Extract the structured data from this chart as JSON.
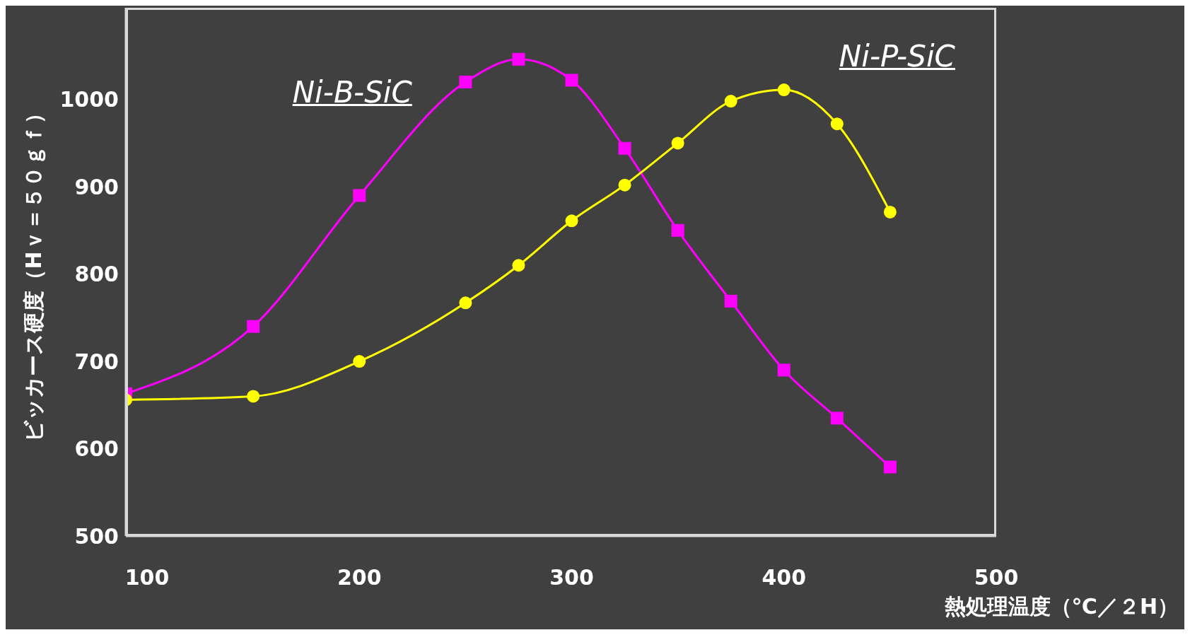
{
  "chart_data": {
    "type": "line",
    "xlabel": "熱処理温度（℃／２H）",
    "ylabel": "ビッカース硬度（Hｖ＝５０ｇｆ）",
    "xlim": [
      90,
      500
    ],
    "xticks": [
      100,
      200,
      300,
      400,
      500
    ],
    "ylim": [
      500,
      1105
    ],
    "yticks": [
      500,
      600,
      700,
      800,
      900,
      1000
    ],
    "grid": false,
    "legend": false,
    "line_style": "solid",
    "series": [
      {
        "name": "Ni-B-SiC",
        "color": "#ff00ff",
        "marker": "square",
        "x": [
          90,
          150,
          200,
          250,
          275,
          300,
          325,
          350,
          375,
          400,
          425,
          450
        ],
        "values": [
          663,
          740,
          890,
          1020,
          1046,
          1022,
          944,
          850,
          769,
          690,
          635,
          579
        ]
      },
      {
        "name": "Ni-P-SiC",
        "color": "#ffff00",
        "marker": "circle",
        "x": [
          90,
          150,
          200,
          250,
          275,
          300,
          325,
          350,
          375,
          400,
          425,
          450
        ],
        "values": [
          656,
          660,
          700,
          767,
          810,
          861,
          902,
          950,
          998,
          1011,
          972,
          871
        ]
      }
    ]
  }
}
